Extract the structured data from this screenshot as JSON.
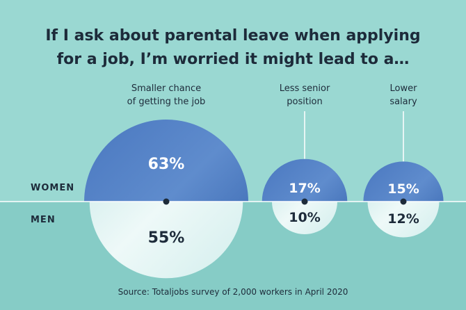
{
  "chart_data": {
    "type": "bubble",
    "title_lines": [
      "If I ask about parental leave when applying",
      "for a job, I’m worried it might lead to a…"
    ],
    "categories": [
      {
        "label_lines": [
          "Smaller chance",
          "of getting the job"
        ]
      },
      {
        "label_lines": [
          "Less senior",
          "position"
        ]
      },
      {
        "label_lines": [
          "Lower",
          "salary"
        ]
      }
    ],
    "series": [
      {
        "name": "WOMEN",
        "values": [
          63,
          17,
          15
        ],
        "value_labels": [
          "63%",
          "17%",
          "15%"
        ],
        "color": "#3f6fba"
      },
      {
        "name": "MEN",
        "values": [
          55,
          10,
          12
        ],
        "value_labels": [
          "55%",
          "10%",
          "12%"
        ],
        "color": "#dff1f0"
      }
    ],
    "source": "Source: Totaljobs survey of 2,000 workers in April 2020"
  },
  "colors": {
    "background_top": "#9ad8d2",
    "background_bottom": "#86ccc6",
    "divider": "#ffffff",
    "text": "#1d2b3a"
  }
}
